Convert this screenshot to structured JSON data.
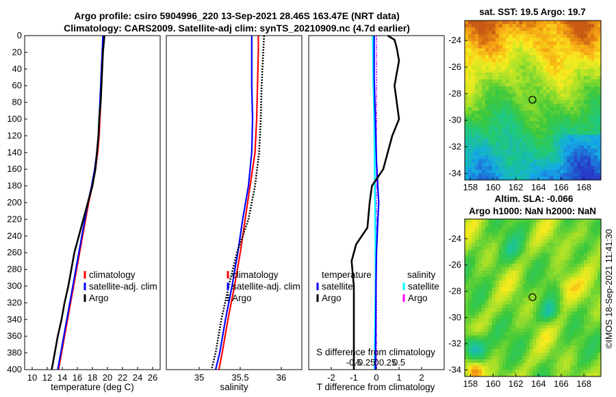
{
  "header": {
    "line1": "Argo profile: csiro 5904996_220 13-Sep-2021 28.46S 163.47E (NRT data)",
    "line2": "Climatology: CARS2009. Satellite-adj clim: synTS_20210909.nc (4.7d earlier)"
  },
  "credit": "©IMOS 18-Sep-2021 11:41:30",
  "colors": {
    "climatology": "#ff0000",
    "satellite": "#0000ff",
    "argo": "#000000",
    "salinity_satellite": "#00ffff",
    "salinity_argo": "#ff00ff"
  },
  "chart_data": [
    {
      "type": "line",
      "id": "temperature-profile",
      "xlabel": "temperature (deg C)",
      "ylabel": "",
      "xlim": [
        9,
        27
      ],
      "ylim": [
        400,
        0
      ],
      "xticks": [
        10,
        12,
        14,
        16,
        18,
        20,
        22,
        24,
        26
      ],
      "yticks": [
        0,
        20,
        40,
        60,
        80,
        100,
        120,
        140,
        160,
        180,
        200,
        220,
        240,
        260,
        280,
        300,
        320,
        340,
        360,
        380,
        400
      ],
      "legend": [
        "climatology",
        "satellite-adj. clim",
        "Argo"
      ],
      "series": [
        {
          "name": "climatology",
          "style": "solid",
          "depth": [
            0,
            20,
            40,
            60,
            80,
            100,
            120,
            140,
            160,
            180,
            200,
            240,
            280,
            320,
            360,
            400
          ],
          "values": [
            19.5,
            19.4,
            19.3,
            19.2,
            19.1,
            19.0,
            18.9,
            18.7,
            18.4,
            18.0,
            17.5,
            16.7,
            15.9,
            15.1,
            14.3,
            13.5
          ]
        },
        {
          "name": "satellite-adj. clim",
          "style": "solid",
          "depth": [
            0,
            20,
            40,
            60,
            80,
            100,
            120,
            140,
            160,
            180,
            200,
            240,
            280,
            320,
            360,
            400
          ],
          "values": [
            19.4,
            19.3,
            19.2,
            19.1,
            19.0,
            18.9,
            18.8,
            18.6,
            18.3,
            17.9,
            17.4,
            16.6,
            15.8,
            15.0,
            14.2,
            13.4
          ]
        },
        {
          "name": "Argo",
          "style": "solid",
          "depth": [
            0,
            10,
            20,
            40,
            60,
            80,
            100,
            120,
            140,
            160,
            180,
            200,
            220,
            240,
            260,
            280,
            300,
            320,
            340,
            360,
            380,
            400
          ],
          "values": [
            19.6,
            19.5,
            19.4,
            19.3,
            19.2,
            19.1,
            18.9,
            18.8,
            18.6,
            18.4,
            18.0,
            17.4,
            16.8,
            16.2,
            15.6,
            15.2,
            14.8,
            14.3,
            13.9,
            13.4,
            13.0,
            12.6
          ]
        }
      ]
    },
    {
      "type": "line",
      "id": "salinity-profile",
      "xlabel": "salinity",
      "ylabel": "",
      "xlim": [
        34.6,
        36.25
      ],
      "ylim": [
        400,
        0
      ],
      "xticks": [
        35,
        35.5,
        36
      ],
      "legend": [
        "climatology",
        "satellite-adj. clim",
        "Argo"
      ],
      "series": [
        {
          "name": "climatology",
          "style": "solid",
          "depth": [
            0,
            20,
            60,
            100,
            140,
            180,
            220,
            260,
            300,
            340,
            380,
            400
          ],
          "values": [
            35.72,
            35.72,
            35.71,
            35.7,
            35.68,
            35.62,
            35.56,
            35.5,
            35.43,
            35.35,
            35.28,
            35.24
          ]
        },
        {
          "name": "satellite-adj. clim",
          "style": "solid",
          "depth": [
            0,
            20,
            60,
            100,
            140,
            180,
            220,
            260,
            300,
            340,
            380,
            400
          ],
          "values": [
            35.64,
            35.64,
            35.64,
            35.65,
            35.64,
            35.6,
            35.53,
            35.47,
            35.4,
            35.32,
            35.25,
            35.2
          ]
        },
        {
          "name": "Argo",
          "style": "dotted",
          "depth": [
            0,
            20,
            60,
            100,
            140,
            180,
            220,
            260,
            300,
            340,
            380,
            400
          ],
          "values": [
            35.79,
            35.78,
            35.76,
            35.75,
            35.73,
            35.68,
            35.6,
            35.46,
            35.36,
            35.27,
            35.2,
            35.15
          ]
        }
      ]
    },
    {
      "type": "line",
      "id": "difference-profile",
      "xlabel": "T difference from climatology",
      "xlabel_top": "S difference from climatology",
      "xlim": [
        -3,
        3
      ],
      "ylim": [
        400,
        0
      ],
      "xticks": [
        -2,
        -1,
        0,
        1,
        2
      ],
      "xtick_labels": [
        "-2",
        "-1",
        "0",
        "1",
        "2"
      ],
      "sticks": [
        -0.5,
        -0.25,
        0,
        0.25,
        0.5
      ],
      "stick_labels": [
        "-0.5",
        "-0.25",
        "0",
        "0.25",
        "0.5"
      ],
      "legend_temperature_title": "temperature",
      "legend_salinity_title": "salinity",
      "legend_temperature": [
        "satellite",
        "Argo"
      ],
      "legend_salinity": [
        "satellite",
        "Argo"
      ],
      "series": [
        {
          "name": "T satellite",
          "style": "solid",
          "depth": [
            0,
            50,
            100,
            150,
            200,
            230,
            260,
            300,
            350,
            400
          ],
          "values": [
            -0.1,
            -0.1,
            -0.05,
            0.0,
            0.1,
            0.05,
            0.0,
            -0.02,
            -0.03,
            -0.05
          ]
        },
        {
          "name": "T Argo",
          "style": "solid",
          "depth": [
            0,
            5,
            15,
            30,
            60,
            100,
            120,
            160,
            180,
            200,
            230,
            250,
            270,
            300,
            340,
            400
          ],
          "values": [
            0.5,
            0.8,
            0.9,
            1.0,
            0.8,
            1.0,
            0.7,
            0.3,
            -0.2,
            -0.3,
            -0.4,
            -0.9,
            -1.1,
            -1.0,
            -1.0,
            -1.0
          ]
        },
        {
          "name": "S satellite",
          "style": "solid",
          "depth": [
            0,
            50,
            100,
            150,
            200,
            260,
            300,
            350,
            400
          ],
          "values": [
            -0.08,
            -0.07,
            -0.05,
            -0.04,
            -0.03,
            -0.02,
            -0.02,
            -0.03,
            -0.04
          ]
        },
        {
          "name": "S Argo",
          "style": "dotted",
          "depth": [
            0,
            100,
            200,
            300,
            400
          ],
          "values": [
            0.0,
            0.0,
            0.0,
            0.0,
            0.0
          ]
        }
      ]
    },
    {
      "type": "heatmap",
      "id": "sst-map",
      "title": "sat. SST: 19.5 Argo: 19.7",
      "xticks": [
        158,
        160,
        162,
        164,
        166,
        168
      ],
      "yticks": [
        -24,
        -26,
        -28,
        -30,
        -32,
        -34
      ],
      "xlim": [
        157.5,
        169.5
      ],
      "ylim": [
        -34.5,
        -22.5
      ],
      "marker": [
        163.47,
        -28.46
      ]
    },
    {
      "type": "heatmap",
      "id": "sla-map",
      "title_line1": "Altim. SLA: -0.066",
      "title_line2": "Argo h1000: NaN h2000: NaN",
      "xticks": [
        158,
        160,
        162,
        164,
        166,
        168
      ],
      "yticks": [
        -24,
        -26,
        -28,
        -30,
        -32,
        -34
      ],
      "xlim": [
        157.5,
        169.5
      ],
      "ylim": [
        -34.5,
        -22.5
      ],
      "marker": [
        163.47,
        -28.46
      ]
    }
  ]
}
